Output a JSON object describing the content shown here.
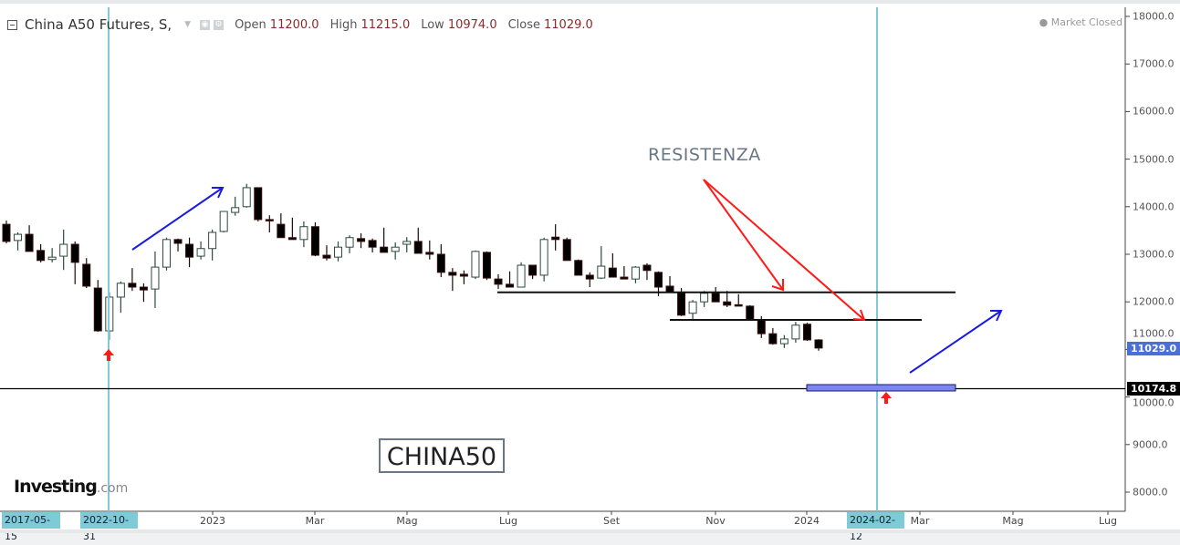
{
  "header": {
    "symbol": "China A50 Futures, S,",
    "open_label": "Open",
    "open": "11200.0",
    "high_label": "High",
    "high": "11215.0",
    "low_label": "Low",
    "low": "10974.0",
    "close_label": "Close",
    "close": "11029.0",
    "status": "Market Closed"
  },
  "annotations": {
    "resistance_text": "RESISTENZA",
    "symbol_box": "CHINA50"
  },
  "logo": {
    "main": "Investing",
    "suffix": ".com"
  },
  "price_labels": {
    "last": "11029.0",
    "support": "10174.8"
  },
  "time_highlights": [
    "2017-05-15",
    "2022-10-31",
    "2024-02-12"
  ],
  "colors": {
    "up_border": "#2d4a3e",
    "down_fill": "#000000",
    "vline": "#7ecad6",
    "last_price": "#4a6fd8",
    "support_rect": "#7b86f0",
    "arrow_red": "#ff1a1a",
    "arrow_blue": "#1a1ae6"
  },
  "chart_data": {
    "type": "candlestick",
    "title": "China A50 Futures, S",
    "timeframe": "weekly",
    "ylim": [
      8000,
      18000
    ],
    "yticks": [
      "18000.0",
      "17000.0",
      "16000.0",
      "15000.0",
      "14000.0",
      "13000.0",
      "12000.0",
      "11000.0",
      "10000.0",
      "9000.0",
      "8000.0"
    ],
    "xticks": [
      "2023",
      "Mar",
      "Mag",
      "Lug",
      "Set",
      "Nov",
      "2024",
      "Mar",
      "Mag",
      "Lug"
    ],
    "support_level": 10174.8,
    "resistance_levels": [
      12200,
      11620
    ],
    "candles": [
      [
        13630,
        13710,
        13230,
        13270
      ],
      [
        13290,
        13460,
        13080,
        13420
      ],
      [
        13420,
        13610,
        13060,
        13060
      ],
      [
        13080,
        13210,
        12830,
        12870
      ],
      [
        12890,
        13130,
        12830,
        12940
      ],
      [
        12960,
        13520,
        12670,
        13210
      ],
      [
        13210,
        13270,
        12370,
        12830
      ],
      [
        12790,
        12920,
        12290,
        12330
      ],
      [
        12290,
        12460,
        11370,
        11390
      ],
      [
        11390,
        12200,
        11200,
        12100
      ],
      [
        12100,
        12430,
        11770,
        12390
      ],
      [
        12390,
        12710,
        12230,
        12310
      ],
      [
        12310,
        12390,
        12000,
        12250
      ],
      [
        12270,
        13060,
        11870,
        12730
      ],
      [
        12730,
        13350,
        12660,
        13310
      ],
      [
        13310,
        13330,
        13060,
        13230
      ],
      [
        13210,
        13350,
        12730,
        12940
      ],
      [
        12960,
        13270,
        12890,
        13120
      ],
      [
        13120,
        13520,
        12870,
        13460
      ],
      [
        13480,
        13900,
        13460,
        13900
      ],
      [
        13880,
        14210,
        13810,
        13980
      ],
      [
        14000,
        14480,
        13980,
        14400
      ],
      [
        14400,
        14400,
        13690,
        13730
      ],
      [
        13730,
        13820,
        13460,
        13710
      ],
      [
        13630,
        13860,
        13350,
        13350
      ],
      [
        13350,
        13770,
        13310,
        13310
      ],
      [
        13310,
        13690,
        13150,
        13580
      ],
      [
        13580,
        13670,
        12960,
        12980
      ],
      [
        12980,
        13190,
        12870,
        12920
      ],
      [
        12940,
        13270,
        12850,
        13150
      ],
      [
        13150,
        13400,
        13020,
        13350
      ],
      [
        13330,
        13440,
        13130,
        13270
      ],
      [
        13290,
        13330,
        13040,
        13150
      ],
      [
        13150,
        13560,
        13040,
        13040
      ],
      [
        13060,
        13250,
        12890,
        13150
      ],
      [
        13210,
        13360,
        13040,
        13270
      ],
      [
        13270,
        13560,
        13020,
        13020
      ],
      [
        13040,
        13290,
        12890,
        13000
      ],
      [
        13000,
        13210,
        12520,
        12620
      ],
      [
        12620,
        12710,
        12230,
        12560
      ],
      [
        12580,
        12660,
        12370,
        12540
      ],
      [
        12520,
        13080,
        12480,
        13060
      ],
      [
        13040,
        13060,
        12460,
        12500
      ],
      [
        12480,
        12580,
        12270,
        12370
      ],
      [
        12370,
        12640,
        12310,
        12310
      ],
      [
        12310,
        12830,
        12310,
        12770
      ],
      [
        12770,
        12770,
        12480,
        12560
      ],
      [
        12560,
        13350,
        12430,
        13310
      ],
      [
        13360,
        13630,
        13080,
        13310
      ],
      [
        13310,
        13350,
        12870,
        12870
      ],
      [
        12870,
        12890,
        12560,
        12560
      ],
      [
        12560,
        12620,
        12310,
        12480
      ],
      [
        12500,
        13170,
        12480,
        12750
      ],
      [
        12710,
        13020,
        12520,
        12520
      ],
      [
        12520,
        12750,
        12480,
        12480
      ],
      [
        12480,
        12750,
        12390,
        12730
      ],
      [
        12770,
        12810,
        12460,
        12660
      ],
      [
        12620,
        12640,
        12120,
        12310
      ],
      [
        12330,
        12540,
        12200,
        12200
      ],
      [
        12200,
        12290,
        11700,
        11720
      ],
      [
        11760,
        12040,
        11600,
        12000
      ],
      [
        12000,
        12230,
        11890,
        12180
      ],
      [
        12180,
        12310,
        12000,
        12000
      ],
      [
        12000,
        12230,
        11890,
        11930
      ],
      [
        11940,
        12160,
        11910,
        11910
      ],
      [
        11910,
        11930,
        11620,
        11620
      ],
      [
        11620,
        11700,
        11240,
        11330
      ],
      [
        11330,
        11450,
        11100,
        11120
      ],
      [
        11120,
        11300,
        11030,
        11220
      ],
      [
        11220,
        11580,
        11140,
        11510
      ],
      [
        11530,
        11560,
        11180,
        11200
      ],
      [
        11200,
        11215,
        10974,
        11029
      ]
    ],
    "candle_fields": [
      "open",
      "high",
      "low",
      "close"
    ]
  }
}
